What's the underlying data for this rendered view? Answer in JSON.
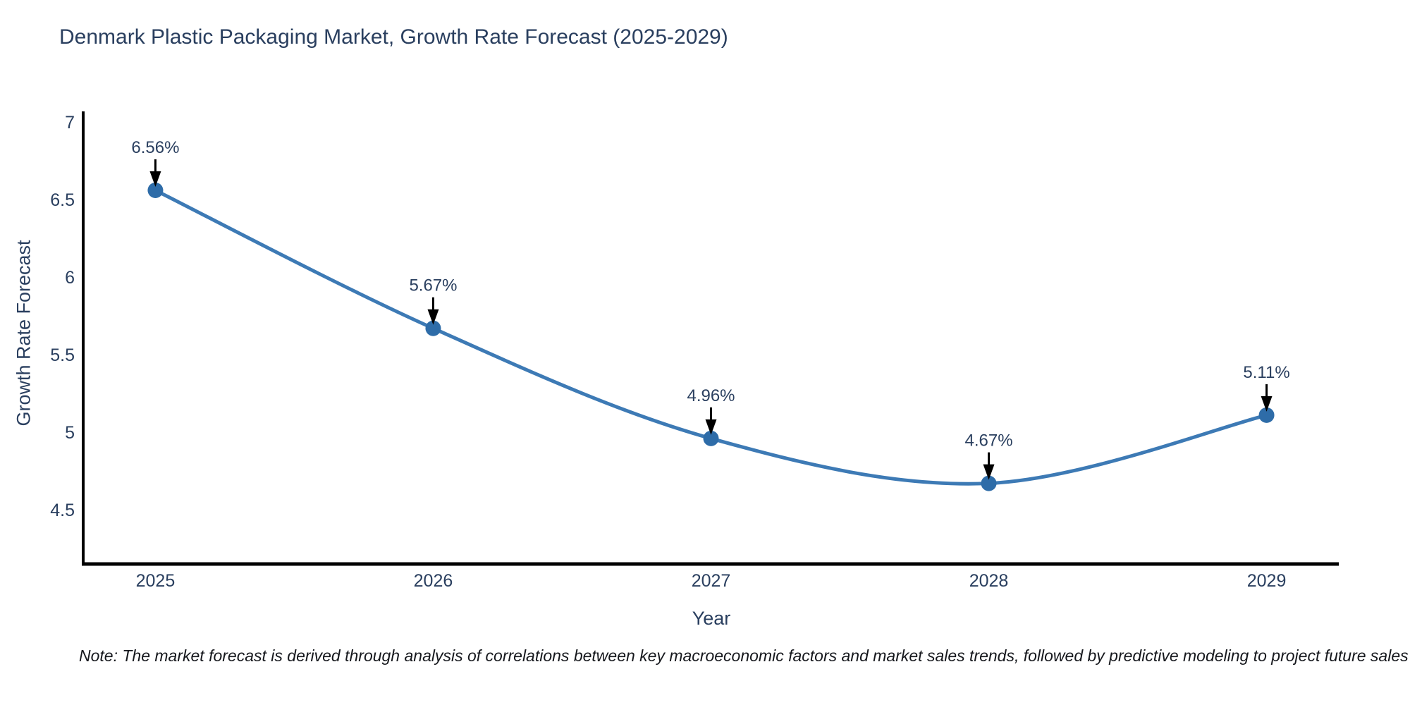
{
  "title": "Denmark Plastic Packaging Market, Growth Rate Forecast (2025-2029)",
  "note": "Note: The market forecast is derived through analysis of correlations between key macroeconomic factors and market sales trends, followed by predictive modeling to project future sales",
  "chart_data": {
    "type": "line",
    "line_shape": "spline",
    "title": "Denmark Plastic Packaging Market, Growth Rate Forecast (2025-2029)",
    "xlabel": "Year",
    "ylabel": "Growth Rate Forecast",
    "x": [
      2025,
      2026,
      2027,
      2028,
      2029
    ],
    "y": [
      6.56,
      5.67,
      4.96,
      4.67,
      5.11
    ],
    "point_labels": [
      "6.56%",
      "5.67%",
      "4.96%",
      "4.67%",
      "5.11%"
    ],
    "x_ticks": [
      2025,
      2026,
      2027,
      2028,
      2029
    ],
    "x_tick_labels": [
      "2025",
      "2026",
      "2027",
      "2028",
      "2029"
    ],
    "y_ticks": [
      4.5,
      5,
      5.5,
      6,
      6.5,
      7
    ],
    "y_tick_labels": [
      "4.5",
      "5",
      "5.5",
      "6",
      "6.5",
      "7"
    ],
    "xlim": [
      2024.74,
      2029.26
    ],
    "ylim": [
      4.15,
      7.06
    ],
    "grid": false,
    "legend": "none",
    "colors": {
      "line": "#3d7ab5",
      "marker": "#2e6ca8",
      "arrow": "#000000",
      "axis": "#000000",
      "text": "#2a3f5f"
    }
  }
}
